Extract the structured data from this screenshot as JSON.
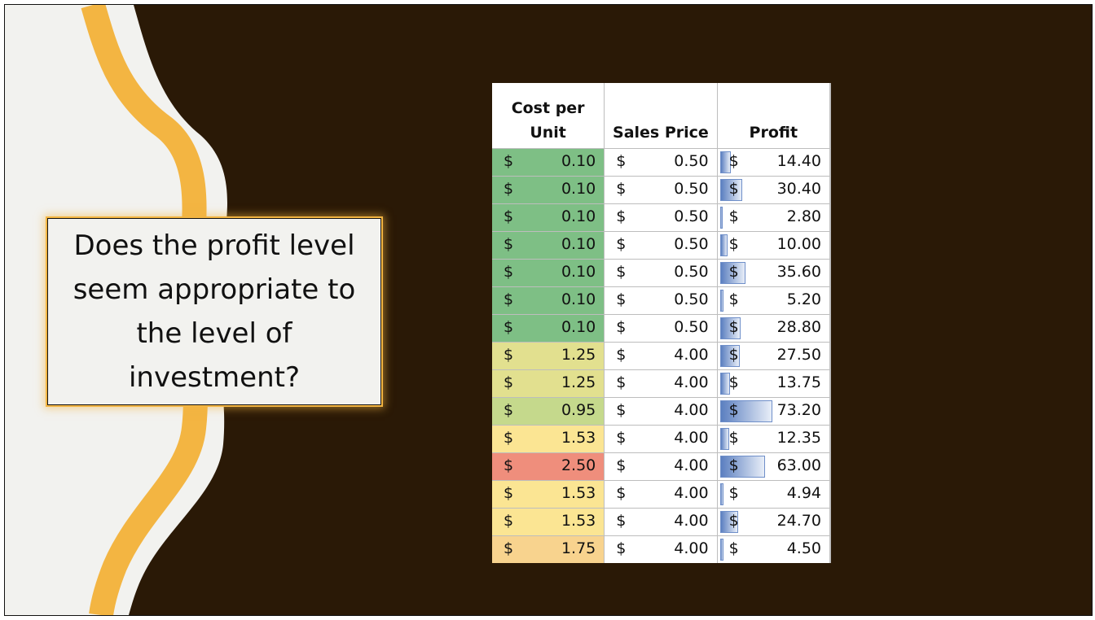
{
  "question": "Does the profit level seem appropriate to the level of investment?",
  "colors": {
    "background": "#2a1906",
    "accent_orange": "#f3b542",
    "panel": "#f2f2ef",
    "data_bar": "#5b7fc0"
  },
  "table": {
    "headers": {
      "cost": "Cost per Unit",
      "sales": "Sales Price",
      "profit": "Profit"
    },
    "currency": "$",
    "rows": [
      {
        "cost": "0.10",
        "sales": "0.50",
        "profit": "14.40",
        "cost_color": "#7ebf85",
        "profit_level": 0.2
      },
      {
        "cost": "0.10",
        "sales": "0.50",
        "profit": "30.40",
        "cost_color": "#7ebf85",
        "profit_level": 0.42
      },
      {
        "cost": "0.10",
        "sales": "0.50",
        "profit": "2.80",
        "cost_color": "#7ebf85",
        "profit_level": 0.04
      },
      {
        "cost": "0.10",
        "sales": "0.50",
        "profit": "10.00",
        "cost_color": "#7ebf85",
        "profit_level": 0.14
      },
      {
        "cost": "0.10",
        "sales": "0.50",
        "profit": "35.60",
        "cost_color": "#7ebf85",
        "profit_level": 0.49
      },
      {
        "cost": "0.10",
        "sales": "0.50",
        "profit": "5.20",
        "cost_color": "#7ebf85",
        "profit_level": 0.07
      },
      {
        "cost": "0.10",
        "sales": "0.50",
        "profit": "28.80",
        "cost_color": "#7ebf85",
        "profit_level": 0.39
      },
      {
        "cost": "1.25",
        "sales": "4.00",
        "profit": "27.50",
        "cost_color": "#e2e08f",
        "profit_level": 0.38
      },
      {
        "cost": "1.25",
        "sales": "4.00",
        "profit": "13.75",
        "cost_color": "#e2e08f",
        "profit_level": 0.19
      },
      {
        "cost": "0.95",
        "sales": "4.00",
        "profit": "73.20",
        "cost_color": "#c5d98c",
        "profit_level": 1.0
      },
      {
        "cost": "1.53",
        "sales": "4.00",
        "profit": "12.35",
        "cost_color": "#fbe593",
        "profit_level": 0.17
      },
      {
        "cost": "2.50",
        "sales": "4.00",
        "profit": "63.00",
        "cost_color": "#ef8e7c",
        "profit_level": 0.86
      },
      {
        "cost": "1.53",
        "sales": "4.00",
        "profit": "4.94",
        "cost_color": "#fbe593",
        "profit_level": 0.07
      },
      {
        "cost": "1.53",
        "sales": "4.00",
        "profit": "24.70",
        "cost_color": "#fbe593",
        "profit_level": 0.34
      },
      {
        "cost": "1.75",
        "sales": "4.00",
        "profit": "4.50",
        "cost_color": "#f8d38e",
        "profit_level": 0.06
      }
    ]
  }
}
